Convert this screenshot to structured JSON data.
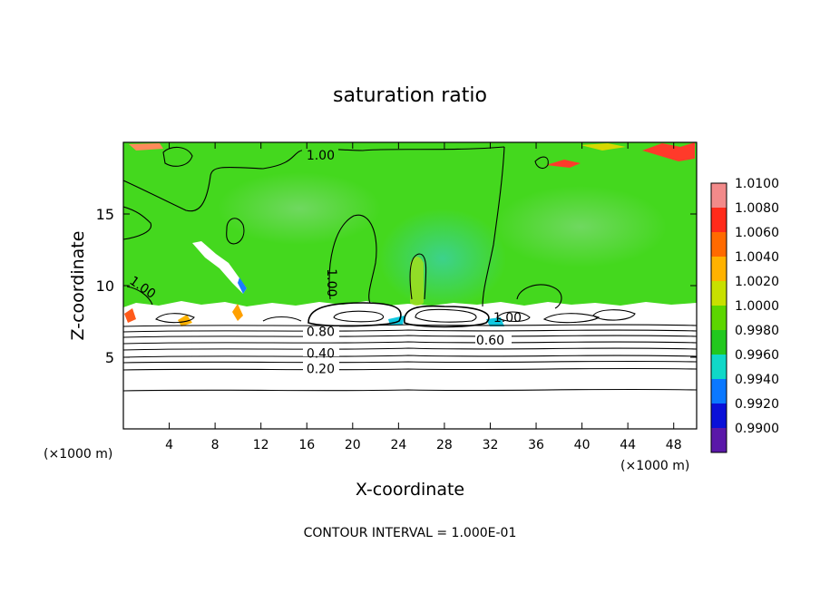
{
  "chart_data": {
    "type": "heatmap",
    "title": "saturation ratio",
    "xlabel": "X-coordinate",
    "ylabel": "Z-coordinate",
    "x_unit_left": "(×1000 m)",
    "x_unit_right": "(×1000 m)",
    "footer": "CONTOUR INTERVAL = 1.000E-01",
    "xlim": [
      0,
      50
    ],
    "ylim": [
      0,
      20
    ],
    "x_ticks": [
      4,
      8,
      12,
      16,
      20,
      24,
      28,
      32,
      36,
      40,
      44,
      48
    ],
    "y_ticks": [
      5,
      10,
      15
    ],
    "colorbar": {
      "levels": [
        "1.0100",
        "1.0080",
        "1.0060",
        "1.0040",
        "1.0020",
        "1.0000",
        "0.9980",
        "0.9960",
        "0.9940",
        "0.9920",
        "0.9900"
      ],
      "colors": [
        "#f28a8a",
        "#ff2a1a",
        "#ff6a00",
        "#ffb200",
        "#c8e000",
        "#5cd600",
        "#22c81e",
        "#10d8c8",
        "#0a78ff",
        "#0a10d8",
        "#5a18a8"
      ]
    },
    "contour_labels": [
      {
        "text": "1.00",
        "x": 17.2,
        "z": 19.1
      },
      {
        "text": "1.00",
        "x": 1.7,
        "z": 9.9
      },
      {
        "text": "1.00",
        "x": 18.2,
        "z": 10.2
      },
      {
        "text": "1.00",
        "x": 33.5,
        "z": 7.8
      },
      {
        "text": "0.80",
        "x": 17.2,
        "z": 6.8
      },
      {
        "text": "0.60",
        "x": 32.0,
        "z": 6.2
      },
      {
        "text": "0.40",
        "x": 17.2,
        "z": 5.3
      },
      {
        "text": "0.20",
        "x": 17.2,
        "z": 4.2
      }
    ],
    "contour_levels": [
      {
        "level": 0.9,
        "z": 6.9
      },
      {
        "level": 0.8,
        "z": 6.6
      },
      {
        "level": 0.7,
        "z": 6.2
      },
      {
        "level": 0.6,
        "z": 5.9
      },
      {
        "level": 0.5,
        "z": 5.6
      },
      {
        "level": 0.4,
        "z": 5.15
      },
      {
        "level": 0.3,
        "z": 4.75
      },
      {
        "level": 0.2,
        "z": 4.2
      },
      {
        "level": 0.1,
        "z": 2.6
      }
    ]
  }
}
